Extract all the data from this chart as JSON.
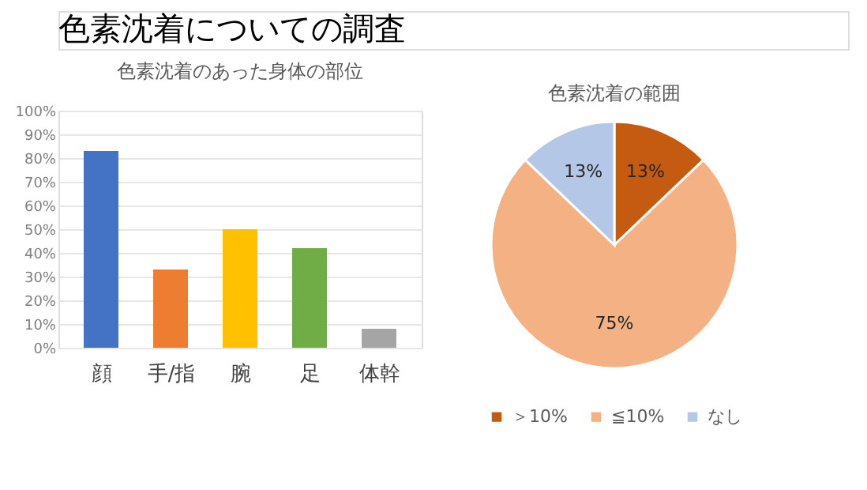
{
  "chart_data": [
    {
      "type": "bar",
      "title": "色素沈着のあった身体の部位",
      "annotations": [
        "色素沈着についての調査"
      ],
      "categories": [
        "顔",
        "手/指",
        "腕",
        "足",
        "体幹"
      ],
      "values": [
        83,
        33,
        50,
        42,
        8
      ],
      "colors": [
        "#4472c4",
        "#ed7d31",
        "#ffc000",
        "#70ad47",
        "#a5a5a5"
      ],
      "ylim": [
        0,
        100
      ],
      "yticks": [
        {
          "value": 0,
          "label": "0%"
        },
        {
          "value": 10,
          "label": "10%"
        },
        {
          "value": 20,
          "label": "20%"
        },
        {
          "value": 30,
          "label": "30%"
        },
        {
          "value": 40,
          "label": "40%"
        },
        {
          "value": 50,
          "label": "50%"
        },
        {
          "value": 60,
          "label": "60%"
        },
        {
          "value": 70,
          "label": "70%"
        },
        {
          "value": 80,
          "label": "80%"
        },
        {
          "value": 90,
          "label": "90%"
        },
        {
          "value": 100,
          "label": "100%"
        }
      ],
      "grid": "y",
      "legend": false
    },
    {
      "type": "pie",
      "title": "色素沈着の範囲",
      "categories": [
        "＞10%",
        "≦10%",
        "なし"
      ],
      "values": [
        13,
        75,
        13
      ],
      "colors": [
        "#c55a11",
        "#f4b183",
        "#b4c7e7"
      ],
      "value_labels": [
        "13%",
        "75%",
        "13%"
      ],
      "legend": "bottom"
    }
  ]
}
